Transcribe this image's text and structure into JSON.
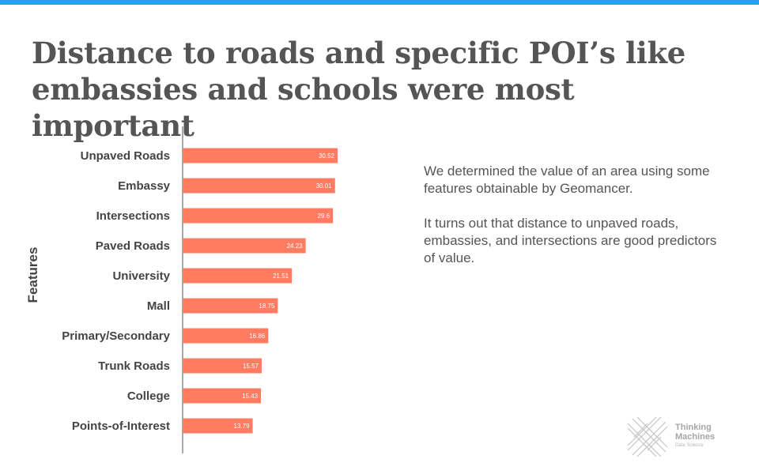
{
  "slide": {
    "title_line1": "Distance to roads and specific POI’s like",
    "title_line2": "embassies and schools were most important",
    "notes": [
      "We determined the value of an area using some features obtainable by Geomancer.",
      "It turns out that distance to unpaved roads, embassies, and intersections are good predictors of value."
    ],
    "logo": {
      "line1": "Thinking",
      "line2": "Machines",
      "line3": "Data Science"
    }
  },
  "colors": {
    "bar": "#ff7b61",
    "top_bar": "#2f9ee8",
    "axis": "#555555",
    "text": "#555555"
  },
  "chart_data": {
    "type": "bar",
    "orientation": "horizontal",
    "ylabel": "Features",
    "xlabel": "",
    "xlim": [
      0,
      45
    ],
    "grid": false,
    "categories": [
      "Unpaved Roads",
      "Embassy",
      "Intersections",
      "Paved Roads",
      "University",
      "Mall",
      "Primary/Secondary",
      "Trunk Roads",
      "College",
      "Points-of-Interest"
    ],
    "values": [
      30.52,
      30.01,
      29.6,
      24.23,
      21.51,
      18.75,
      16.86,
      15.57,
      15.43,
      13.79
    ],
    "value_labels": [
      "30.52",
      "30.01",
      "29.6",
      "24.23",
      "21.51",
      "18.75",
      "16.86",
      "15.57",
      "15.43",
      "13.79"
    ]
  }
}
